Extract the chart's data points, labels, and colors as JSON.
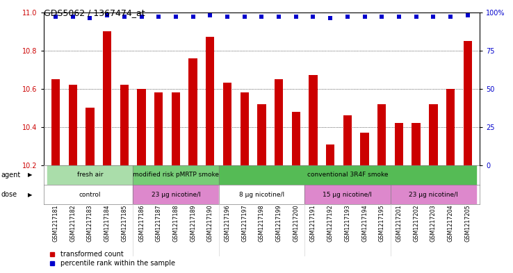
{
  "title": "GDS5062 / 1367474_at",
  "samples": [
    "GSM1217181",
    "GSM1217182",
    "GSM1217183",
    "GSM1217184",
    "GSM1217185",
    "GSM1217186",
    "GSM1217187",
    "GSM1217188",
    "GSM1217189",
    "GSM1217190",
    "GSM1217196",
    "GSM1217197",
    "GSM1217198",
    "GSM1217199",
    "GSM1217200",
    "GSM1217191",
    "GSM1217192",
    "GSM1217193",
    "GSM1217194",
    "GSM1217195",
    "GSM1217201",
    "GSM1217202",
    "GSM1217203",
    "GSM1217204",
    "GSM1217205"
  ],
  "bar_values": [
    10.65,
    10.62,
    10.5,
    10.9,
    10.62,
    10.6,
    10.58,
    10.58,
    10.76,
    10.87,
    10.63,
    10.58,
    10.52,
    10.65,
    10.48,
    10.67,
    10.31,
    10.46,
    10.37,
    10.52,
    10.42,
    10.42,
    10.52,
    10.6,
    10.85
  ],
  "percentile_values": [
    97,
    97,
    96,
    98,
    97,
    97,
    97,
    97,
    97,
    98,
    97,
    97,
    97,
    97,
    97,
    97,
    96,
    97,
    97,
    97,
    97,
    97,
    97,
    97,
    98
  ],
  "bar_color": "#cc0000",
  "dot_color": "#0000cc",
  "ylim_left": [
    10.2,
    11.0
  ],
  "ylim_right": [
    0,
    100
  ],
  "yticks_left": [
    10.2,
    10.4,
    10.6,
    10.8,
    11.0
  ],
  "yticks_right": [
    0,
    25,
    50,
    75,
    100
  ],
  "ytick_right_labels": [
    "0",
    "25",
    "50",
    "75",
    "100%"
  ],
  "grid_values": [
    10.4,
    10.6,
    10.8
  ],
  "agent_groups": [
    {
      "label": "fresh air",
      "start": 0,
      "end": 5,
      "color": "#aaddaa"
    },
    {
      "label": "modified risk pMRTP smoke",
      "start": 5,
      "end": 10,
      "color": "#77cc77"
    },
    {
      "label": "conventional 3R4F smoke",
      "start": 10,
      "end": 25,
      "color": "#55bb55"
    }
  ],
  "dose_groups": [
    {
      "label": "control",
      "start": 0,
      "end": 5,
      "color": "#ffffff"
    },
    {
      "label": "23 μg nicotine/l",
      "start": 5,
      "end": 10,
      "color": "#dd88cc"
    },
    {
      "label": "8 μg nicotine/l",
      "start": 10,
      "end": 15,
      "color": "#ffffff"
    },
    {
      "label": "15 μg nicotine/l",
      "start": 15,
      "end": 20,
      "color": "#dd88cc"
    },
    {
      "label": "23 μg nicotine/l",
      "start": 20,
      "end": 25,
      "color": "#dd88cc"
    }
  ],
  "legend_items": [
    {
      "label": "transformed count",
      "color": "#cc0000"
    },
    {
      "label": "percentile rank within the sample",
      "color": "#0000cc"
    }
  ],
  "xlim": [
    -0.7,
    24.7
  ],
  "bar_width": 0.5
}
